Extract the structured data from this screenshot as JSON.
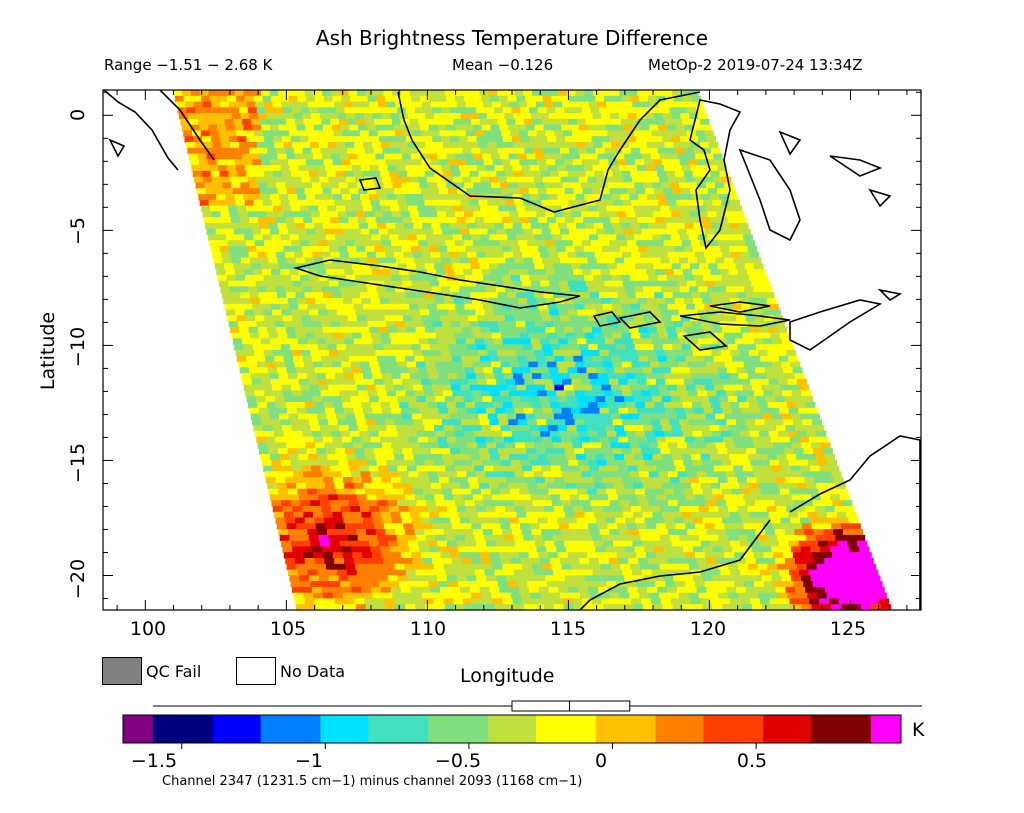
{
  "header": {
    "title": "Ash Brightness Temperature Difference",
    "range": "Range −1.51 − 2.68 K",
    "mean": "Mean −0.126",
    "satellite": "MetOp-2 2019-07-24 13:34Z"
  },
  "legend": {
    "qc_fail": "QC Fail",
    "no_data": "No Data",
    "qc_fail_color": "#808080",
    "no_data_color": "#ffffff"
  },
  "colorbar": {
    "unit": "K",
    "ticks": [
      "−1.5",
      "−1",
      "−0.5",
      "0",
      "0.5"
    ],
    "caption": "Channel 2347 (1231.5 cm−1) minus channel 2093 (1168 cm−1)",
    "under_color": "#800080",
    "over_color": "#ff00ff",
    "colors": [
      "#000080",
      "#0000ff",
      "#0080ff",
      "#00e0ff",
      "#40e0c0",
      "#80e080",
      "#c0e040",
      "#ffff00",
      "#ffc000",
      "#ff8000",
      "#ff4000",
      "#e00000",
      "#800000"
    ],
    "vmin": -1.6,
    "vmax": 0.9,
    "boxplot": {
      "whisker_low": -1.51,
      "q1": -0.35,
      "median": -0.15,
      "q3": 0.06,
      "whisker_high": 1.1
    }
  },
  "chart_data": {
    "type": "heatmap",
    "title": "Ash Brightness Temperature Difference",
    "xlabel": "Longitude",
    "ylabel": "Latitude",
    "xlim": [
      98.5,
      127.5
    ],
    "ylim": [
      -21.5,
      1.1
    ],
    "x_ticks": [
      "100",
      "105",
      "110",
      "115",
      "120",
      "125"
    ],
    "y_ticks": [
      "0",
      "−5",
      "−10",
      "−15",
      "−20"
    ],
    "swath": {
      "edges_lon": [
        [
          101,
          1.1
        ],
        [
          119.6,
          1.1
        ],
        [
          126.5,
          -21.5
        ],
        [
          105.4,
          -21.5
        ]
      ]
    },
    "value_regions": [
      {
        "region": "southwest corner near 106E 18S",
        "value": 0.8
      },
      {
        "region": "southeast corner near 125E 20S",
        "value": 1.5
      },
      {
        "region": "central band near 115E 12S",
        "value": -1.0
      },
      {
        "region": "background",
        "value": -0.3
      }
    ]
  }
}
